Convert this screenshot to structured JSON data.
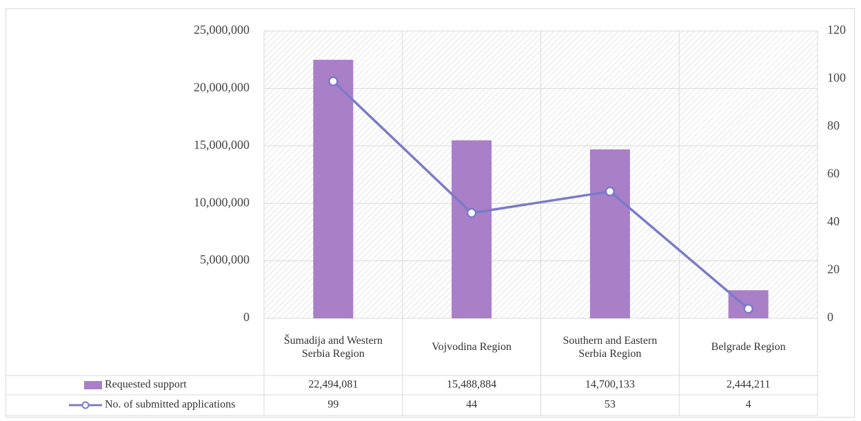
{
  "chart_data": {
    "type": "bar",
    "categories": [
      "Šumadija and Western Serbia Region",
      "Vojvodina Region",
      "Southern and Eastern Serbia Region",
      "Belgrade Region"
    ],
    "series": [
      {
        "name": "Requested support",
        "type": "bar",
        "color": "#a97fc8",
        "values": [
          22494081,
          15488884,
          14700133,
          2444211
        ],
        "value_labels": [
          "22,494,081",
          "15,488,884",
          "14,700,133",
          "2,444,211"
        ]
      },
      {
        "name": "No. of submitted applications",
        "type": "line",
        "axis": "y2",
        "color": "#7b7bc8",
        "values": [
          99,
          44,
          53,
          4
        ]
      }
    ],
    "ylim": [
      0,
      25000000
    ],
    "yticks": [
      0,
      {
        "value": 5000000,
        "label": "5,000,000"
      },
      {
        "value": 10000000,
        "label": "10,000,000"
      },
      {
        "value": 15000000,
        "label": "15,000,000"
      },
      {
        "value": 20000000,
        "label": "20,000,000"
      },
      {
        "value": 25000000,
        "label": "25,000,000"
      }
    ],
    "y2lim": [
      0,
      120
    ],
    "y2ticks": [
      0,
      20,
      40,
      60,
      80,
      100,
      120
    ],
    "grid": true
  }
}
